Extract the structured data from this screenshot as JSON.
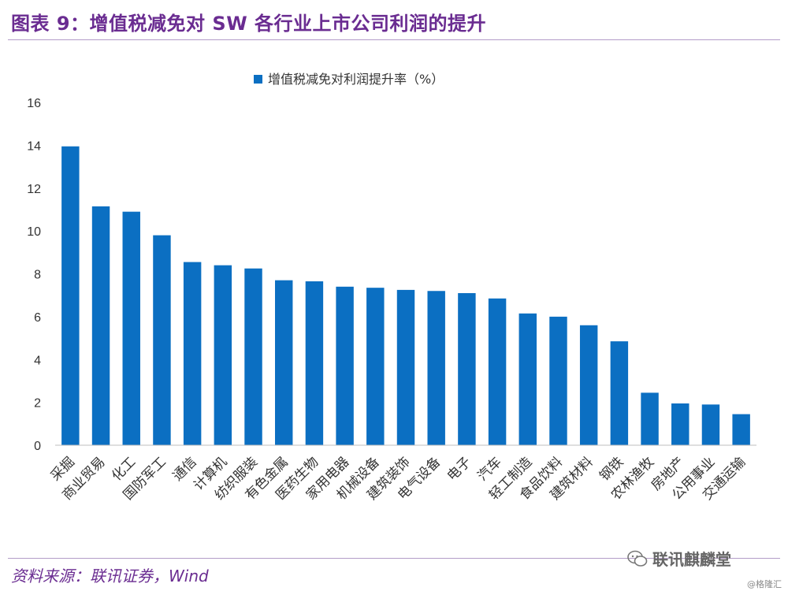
{
  "header": {
    "title": "图表 9：增值税减免对 SW 各行业上市公司利润的提升"
  },
  "footer": {
    "source": "资料来源：联讯证券，Wind"
  },
  "watermark": {
    "text": "联讯麒麟堂",
    "icon": "wechat-icon"
  },
  "credit": "@格隆汇",
  "colors": {
    "title": "#6a2c91",
    "bar": "#0b6fc2",
    "axis": "#bfbfbf"
  },
  "chart_data": {
    "type": "bar",
    "categories": [
      "采掘",
      "商业贸易",
      "化工",
      "国防军工",
      "通信",
      "计算机",
      "纺织服装",
      "有色金属",
      "医药生物",
      "家用电器",
      "机械设备",
      "建筑装饰",
      "电气设备",
      "电子",
      "汽车",
      "轻工制造",
      "食品饮料",
      "建筑材料",
      "钢铁",
      "农林渔牧",
      "房地产",
      "公用事业",
      "交通运输"
    ],
    "series": [
      {
        "name": "增值税减免对利润提升率（%）",
        "values": [
          13.95,
          11.15,
          10.9,
          9.8,
          8.55,
          8.4,
          8.25,
          7.7,
          7.65,
          7.4,
          7.35,
          7.25,
          7.2,
          7.1,
          6.85,
          6.15,
          6.0,
          5.6,
          4.85,
          2.45,
          1.95,
          1.9,
          1.45
        ]
      }
    ],
    "yticks": [
      0,
      2,
      4,
      6,
      8,
      10,
      12,
      14,
      16
    ],
    "ylim": [
      0,
      16
    ],
    "grid": false,
    "legend": "top-center"
  }
}
